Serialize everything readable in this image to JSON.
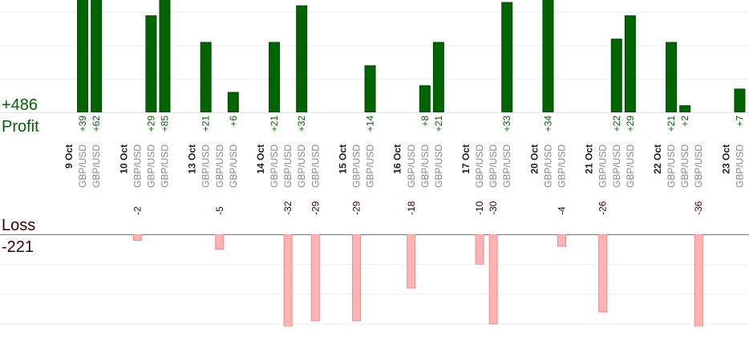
{
  "profit": {
    "label": "Profit",
    "total": {
      "value": 486,
      "label": "+486"
    }
  },
  "loss": {
    "label": "Loss",
    "total": -221
  },
  "days": [
    {
      "date": "9 Oct",
      "trades": [
        {
          "pair": "GBP/USD",
          "value": 39,
          "label": "+39"
        },
        {
          "pair": "GBP/USD",
          "value": 62,
          "label": "+62"
        }
      ]
    },
    {
      "date": "10 Oct",
      "trades": [
        {
          "pair": "GBP/USD",
          "value": -2,
          "label": "-2"
        },
        {
          "pair": "GBP/USD",
          "value": 29,
          "label": "+29"
        },
        {
          "pair": "GBP/USD",
          "value": 85,
          "label": "+85"
        }
      ]
    },
    {
      "date": "13 Oct",
      "trades": [
        {
          "pair": "GBP/USD",
          "value": 21,
          "label": "+21"
        },
        {
          "pair": "GBP/USD",
          "value": -5,
          "label": "-5"
        },
        {
          "pair": "GBP/USD",
          "value": 6,
          "label": "+6"
        }
      ]
    },
    {
      "date": "14 Oct",
      "trades": [
        {
          "pair": "GBP/USD",
          "value": 21,
          "label": "+21"
        },
        {
          "pair": "GBP/USD",
          "value": -32,
          "label": "-32"
        },
        {
          "pair": "GBP/USD",
          "value": 32,
          "label": "+32"
        },
        {
          "pair": "GBP/USD",
          "value": -29,
          "label": "-29"
        }
      ]
    },
    {
      "date": "15 Oct",
      "trades": [
        {
          "pair": "GBP/USD",
          "value": -29,
          "label": "-29"
        },
        {
          "pair": "GBP/USD",
          "value": 14,
          "label": "+14"
        }
      ]
    },
    {
      "date": "16 Oct",
      "trades": [
        {
          "pair": "GBP/USD",
          "value": -18,
          "label": "-18"
        },
        {
          "pair": "GBP/USD",
          "value": 8,
          "label": "+8"
        },
        {
          "pair": "GBP/USD",
          "value": 21,
          "label": "+21"
        }
      ]
    },
    {
      "date": "17 Oct",
      "trades": [
        {
          "pair": "GBP/USD",
          "value": -10,
          "label": "-10"
        },
        {
          "pair": "GBP/USD",
          "value": -30,
          "label": "-30"
        },
        {
          "pair": "GBP/USD",
          "value": 33,
          "label": "+33"
        }
      ]
    },
    {
      "date": "20 Oct",
      "trades": [
        {
          "pair": "GBP/USD",
          "value": 34,
          "label": "+34"
        },
        {
          "pair": "GBP/USD",
          "value": -4,
          "label": "-4"
        }
      ]
    },
    {
      "date": "21 Oct",
      "trades": [
        {
          "pair": "GBP/USD",
          "value": -26,
          "label": "-26"
        },
        {
          "pair": "GBP/USD",
          "value": 22,
          "label": "+22"
        },
        {
          "pair": "GBP/USD",
          "value": 29,
          "label": "+29"
        }
      ]
    },
    {
      "date": "22 Oct",
      "trades": [
        {
          "pair": "GBP/USD",
          "value": 21,
          "label": "+21"
        },
        {
          "pair": "GBP/USD",
          "value": 2,
          "label": "+2"
        },
        {
          "pair": "GBP/USD",
          "value": -36,
          "label": "-36"
        }
      ]
    },
    {
      "date": "23 Oct",
      "trades": [
        {
          "pair": "GBP/USD",
          "value": 7,
          "label": "+7"
        }
      ]
    }
  ]
}
